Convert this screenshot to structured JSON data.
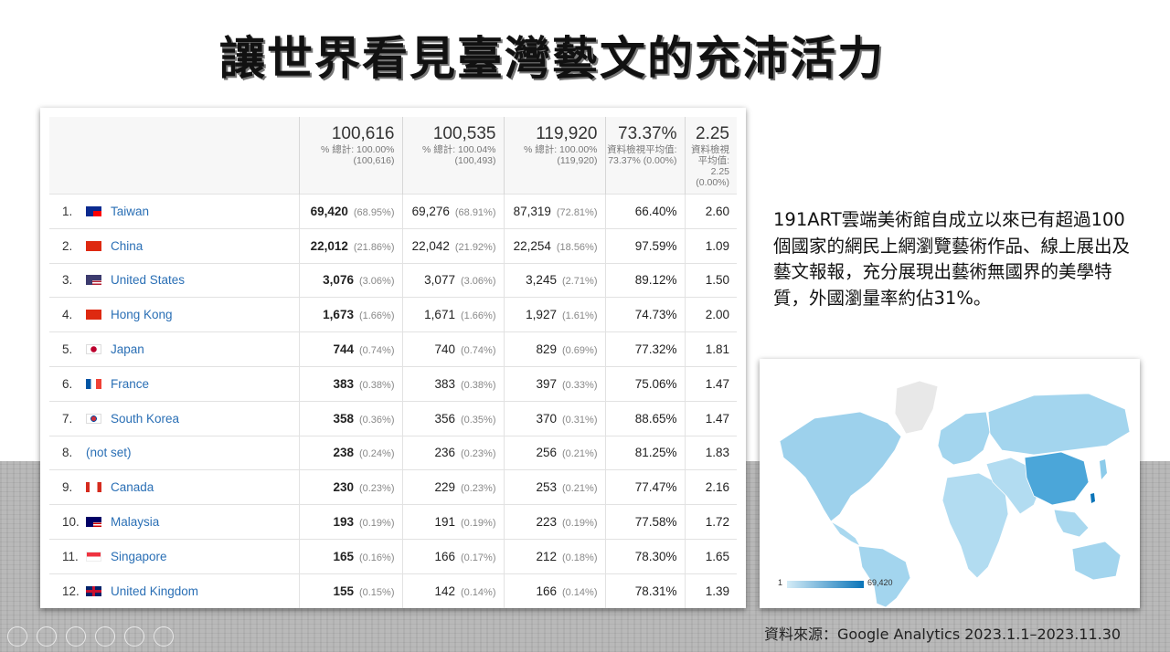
{
  "title": "讓世界看見臺灣藝文的充沛活力",
  "description": "191ART雲端美術館自成立以來已有超過100個國家的網民上網瀏覽藝術作品、線上展出及藝文報報，充分展現出藝術無國界的美學特質，外國瀏量率約佔31%。",
  "source": "資料來源：Google Analytics 2023.1.1–2023.11.30",
  "table": {
    "headers": [
      {
        "big": "100,616",
        "sub": "% 總計: 100.00% (100,616)"
      },
      {
        "big": "100,535",
        "sub": "% 總計: 100.04% (100,493)"
      },
      {
        "big": "119,920",
        "sub": "% 總計: 100.00% (119,920)"
      },
      {
        "big": "73.37%",
        "sub": "資料檢視平均值: 73.37% (0.00%)"
      },
      {
        "big": "2.25",
        "sub": "資料檢視平均值: 2.25 (0.00%)"
      }
    ],
    "rows": [
      {
        "idx": "1.",
        "country": "Taiwan",
        "flag": "taiwan-flag-icon",
        "c1": "69,420",
        "p1": "(68.95%)",
        "c2": "69,276",
        "p2": "(68.91%)",
        "c3": "87,319",
        "p3": "(72.81%)",
        "c4": "66.40%",
        "c5": "2.60"
      },
      {
        "idx": "2.",
        "country": "China",
        "flag": "china-flag-icon",
        "c1": "22,012",
        "p1": "(21.86%)",
        "c2": "22,042",
        "p2": "(21.92%)",
        "c3": "22,254",
        "p3": "(18.56%)",
        "c4": "97.59%",
        "c5": "1.09"
      },
      {
        "idx": "3.",
        "country": "United States",
        "flag": "us-flag-icon",
        "c1": "3,076",
        "p1": "(3.06%)",
        "c2": "3,077",
        "p2": "(3.06%)",
        "c3": "3,245",
        "p3": "(2.71%)",
        "c4": "89.12%",
        "c5": "1.50"
      },
      {
        "idx": "4.",
        "country": "Hong Kong",
        "flag": "hong-kong-flag-icon",
        "c1": "1,673",
        "p1": "(1.66%)",
        "c2": "1,671",
        "p2": "(1.66%)",
        "c3": "1,927",
        "p3": "(1.61%)",
        "c4": "74.73%",
        "c5": "2.00"
      },
      {
        "idx": "5.",
        "country": "Japan",
        "flag": "japan-flag-icon",
        "c1": "744",
        "p1": "(0.74%)",
        "c2": "740",
        "p2": "(0.74%)",
        "c3": "829",
        "p3": "(0.69%)",
        "c4": "77.32%",
        "c5": "1.81"
      },
      {
        "idx": "6.",
        "country": "France",
        "flag": "france-flag-icon",
        "c1": "383",
        "p1": "(0.38%)",
        "c2": "383",
        "p2": "(0.38%)",
        "c3": "397",
        "p3": "(0.33%)",
        "c4": "75.06%",
        "c5": "1.47"
      },
      {
        "idx": "7.",
        "country": "South Korea",
        "flag": "south-korea-flag-icon",
        "c1": "358",
        "p1": "(0.36%)",
        "c2": "356",
        "p2": "(0.35%)",
        "c3": "370",
        "p3": "(0.31%)",
        "c4": "88.65%",
        "c5": "1.47"
      },
      {
        "idx": "8.",
        "country": "(not set)",
        "flag": "",
        "c1": "238",
        "p1": "(0.24%)",
        "c2": "236",
        "p2": "(0.23%)",
        "c3": "256",
        "p3": "(0.21%)",
        "c4": "81.25%",
        "c5": "1.83"
      },
      {
        "idx": "9.",
        "country": "Canada",
        "flag": "canada-flag-icon",
        "c1": "230",
        "p1": "(0.23%)",
        "c2": "229",
        "p2": "(0.23%)",
        "c3": "253",
        "p3": "(0.21%)",
        "c4": "77.47%",
        "c5": "2.16"
      },
      {
        "idx": "10.",
        "country": "Malaysia",
        "flag": "malaysia-flag-icon",
        "c1": "193",
        "p1": "(0.19%)",
        "c2": "191",
        "p2": "(0.19%)",
        "c3": "223",
        "p3": "(0.19%)",
        "c4": "77.58%",
        "c5": "1.72"
      },
      {
        "idx": "11.",
        "country": "Singapore",
        "flag": "singapore-flag-icon",
        "c1": "165",
        "p1": "(0.16%)",
        "c2": "166",
        "p2": "(0.17%)",
        "c3": "212",
        "p3": "(0.18%)",
        "c4": "78.30%",
        "c5": "1.65"
      },
      {
        "idx": "12.",
        "country": "United Kingdom",
        "flag": "uk-flag-icon",
        "c1": "155",
        "p1": "(0.15%)",
        "c2": "142",
        "p2": "(0.14%)",
        "c3": "166",
        "p3": "(0.14%)",
        "c4": "78.31%",
        "c5": "1.39"
      }
    ]
  },
  "map": {
    "legend_min": "1",
    "legend_max": "69,420",
    "colors": {
      "high": "#0a74b8",
      "low": "#d4ecf7",
      "none": "#e8e8e8"
    }
  }
}
